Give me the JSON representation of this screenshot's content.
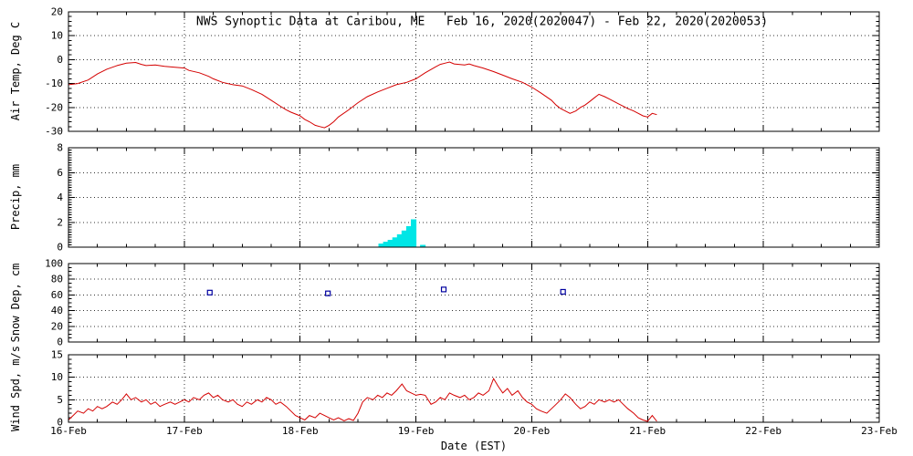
{
  "title": "NWS Synoptic Data at Caribou, ME   Feb 16, 2020(2020047) - Feb 22, 2020(2020053)",
  "x_axis": {
    "label": "Date (EST)",
    "tick_labels": [
      "16-Feb",
      "17-Feb",
      "18-Feb",
      "19-Feb",
      "20-Feb",
      "21-Feb",
      "22-Feb",
      "23-Feb"
    ]
  },
  "colors": {
    "temp_line": "#d40000",
    "precip_bar": "#00e6e6",
    "snow_marker": "#0000a0",
    "wind_line": "#d40000",
    "frame": "#000000"
  },
  "chart_data": [
    {
      "type": "line",
      "name": "air-temp",
      "ylabel": "Air Temp, Deg C",
      "ylim": [
        -30,
        20
      ],
      "yticks": [
        -30,
        -20,
        -10,
        0,
        10,
        20
      ],
      "minor_step": 2,
      "color": "#d40000",
      "x": [
        0,
        0.08,
        0.17,
        0.25,
        0.33,
        0.42,
        0.5,
        0.58,
        0.63,
        0.67,
        0.75,
        0.83,
        0.92,
        1.0,
        1.04,
        1.13,
        1.21,
        1.25,
        1.33,
        1.42,
        1.5,
        1.58,
        1.67,
        1.75,
        1.83,
        1.88,
        1.92,
        2.0,
        2.04,
        2.08,
        2.13,
        2.17,
        2.21,
        2.25,
        2.29,
        2.33,
        2.42,
        2.5,
        2.58,
        2.67,
        2.75,
        2.83,
        2.92,
        3.0,
        3.08,
        3.17,
        3.21,
        3.25,
        3.29,
        3.33,
        3.42,
        3.46,
        3.5,
        3.58,
        3.67,
        3.75,
        3.83,
        3.92,
        4.0,
        4.08,
        4.17,
        4.21,
        4.25,
        4.29,
        4.33,
        4.38,
        4.42,
        4.46,
        4.5,
        4.54,
        4.58,
        4.63,
        4.67,
        4.75,
        4.83,
        4.88,
        4.92,
        4.96,
        5.0,
        5.04,
        5.08
      ],
      "values": [
        -10.5,
        -10,
        -8.5,
        -6,
        -4,
        -2.5,
        -1.5,
        -1.2,
        -2,
        -2.5,
        -2.2,
        -2.8,
        -3.2,
        -3.5,
        -4.5,
        -5.5,
        -7,
        -8,
        -9.5,
        -10.5,
        -11,
        -12.5,
        -14.5,
        -17,
        -19.5,
        -21,
        -22,
        -23.5,
        -25,
        -26,
        -27.5,
        -28,
        -28.5,
        -27.5,
        -26,
        -24,
        -21,
        -18,
        -15.5,
        -13.5,
        -12,
        -10.5,
        -9.5,
        -8,
        -5.5,
        -3,
        -2,
        -1.5,
        -1,
        -1.8,
        -2.2,
        -1.8,
        -2.5,
        -3.5,
        -5,
        -6.5,
        -8,
        -9.5,
        -11.5,
        -14,
        -17,
        -19,
        -20.5,
        -21.5,
        -22.5,
        -21.5,
        -20,
        -19,
        -17.5,
        -16,
        -14.5,
        -15.5,
        -16.5,
        -18.5,
        -20.5,
        -21.5,
        -22.5,
        -23.5,
        -24,
        -22.5,
        -23
      ]
    },
    {
      "type": "bar",
      "name": "precip",
      "ylabel": "Precip, mm",
      "ylim": [
        0,
        8
      ],
      "yticks": [
        0,
        2,
        4,
        6,
        8
      ],
      "minor_step": 0.2,
      "color": "#00e6e6",
      "bar_width_days": 0.04,
      "x": [
        2.7,
        2.74,
        2.78,
        2.82,
        2.86,
        2.9,
        2.94,
        2.98,
        3.06
      ],
      "values": [
        0.25,
        0.4,
        0.55,
        0.75,
        1.0,
        1.3,
        1.65,
        2.2,
        0.15
      ]
    },
    {
      "type": "scatter",
      "name": "snow-depth",
      "ylabel": "Snow Dep, cm",
      "ylim": [
        0,
        100
      ],
      "yticks": [
        0,
        20,
        40,
        60,
        80,
        100
      ],
      "minor_step": 5,
      "color": "#0000a0",
      "x": [
        1.22,
        2.24,
        3.24,
        4.27
      ],
      "values": [
        63,
        62,
        67,
        64
      ]
    },
    {
      "type": "line",
      "name": "wind-speed",
      "ylabel": "Wind Spd, m/s",
      "ylim": [
        0,
        15
      ],
      "yticks": [
        0,
        5,
        10,
        15
      ],
      "minor_step": 1,
      "color": "#d40000",
      "x": [
        0,
        0.04,
        0.08,
        0.13,
        0.17,
        0.21,
        0.25,
        0.29,
        0.33,
        0.38,
        0.42,
        0.46,
        0.5,
        0.54,
        0.58,
        0.63,
        0.67,
        0.71,
        0.75,
        0.79,
        0.83,
        0.88,
        0.92,
        0.96,
        1.0,
        1.04,
        1.08,
        1.13,
        1.17,
        1.21,
        1.25,
        1.29,
        1.33,
        1.38,
        1.42,
        1.46,
        1.5,
        1.54,
        1.58,
        1.63,
        1.67,
        1.71,
        1.75,
        1.79,
        1.83,
        1.88,
        1.92,
        1.96,
        2.0,
        2.04,
        2.08,
        2.13,
        2.17,
        2.21,
        2.25,
        2.29,
        2.33,
        2.38,
        2.42,
        2.46,
        2.5,
        2.54,
        2.58,
        2.63,
        2.67,
        2.71,
        2.75,
        2.79,
        2.83,
        2.88,
        2.92,
        2.96,
        3.0,
        3.04,
        3.08,
        3.13,
        3.17,
        3.21,
        3.25,
        3.29,
        3.33,
        3.38,
        3.42,
        3.46,
        3.5,
        3.54,
        3.58,
        3.63,
        3.67,
        3.71,
        3.75,
        3.79,
        3.83,
        3.88,
        3.92,
        3.96,
        4.0,
        4.04,
        4.08,
        4.13,
        4.17,
        4.21,
        4.25,
        4.29,
        4.33,
        4.38,
        4.42,
        4.46,
        4.5,
        4.54,
        4.58,
        4.63,
        4.67,
        4.71,
        4.75,
        4.79,
        4.83,
        4.88,
        4.92,
        4.96,
        5.0,
        5.04,
        5.08
      ],
      "values": [
        0.5,
        1.5,
        2.5,
        2,
        3,
        2.5,
        3.5,
        3,
        3.5,
        4.5,
        4,
        5,
        6.3,
        5,
        5.5,
        4.5,
        5,
        4,
        4.5,
        3.5,
        4,
        4.5,
        4,
        4.5,
        5,
        4.5,
        5.5,
        5,
        6,
        6.5,
        5.5,
        6,
        5,
        4.5,
        5,
        4,
        3.5,
        4.5,
        4,
        5,
        4.5,
        5.5,
        5,
        4,
        4.5,
        3.5,
        2.5,
        1.5,
        1,
        0.5,
        1.5,
        1,
        2,
        1.5,
        1,
        0.5,
        1,
        0.3,
        0.8,
        0.4,
        2,
        4.5,
        5.5,
        5,
        6,
        5.5,
        6.5,
        6,
        7,
        8.5,
        7,
        6.5,
        6,
        6.2,
        6,
        4,
        4.5,
        5.5,
        5,
        6.5,
        6,
        5.5,
        6,
        5,
        5.5,
        6.5,
        6,
        7,
        9.7,
        8,
        6.5,
        7.5,
        6,
        7,
        5.5,
        4.5,
        4,
        3,
        2.5,
        2,
        3,
        4,
        5,
        6.3,
        5.5,
        4,
        3,
        3.5,
        4.5,
        4,
        5,
        4.5,
        5,
        4.5,
        5,
        4,
        3,
        2,
        1,
        0.5,
        0.2,
        1.5,
        0.2
      ]
    }
  ]
}
